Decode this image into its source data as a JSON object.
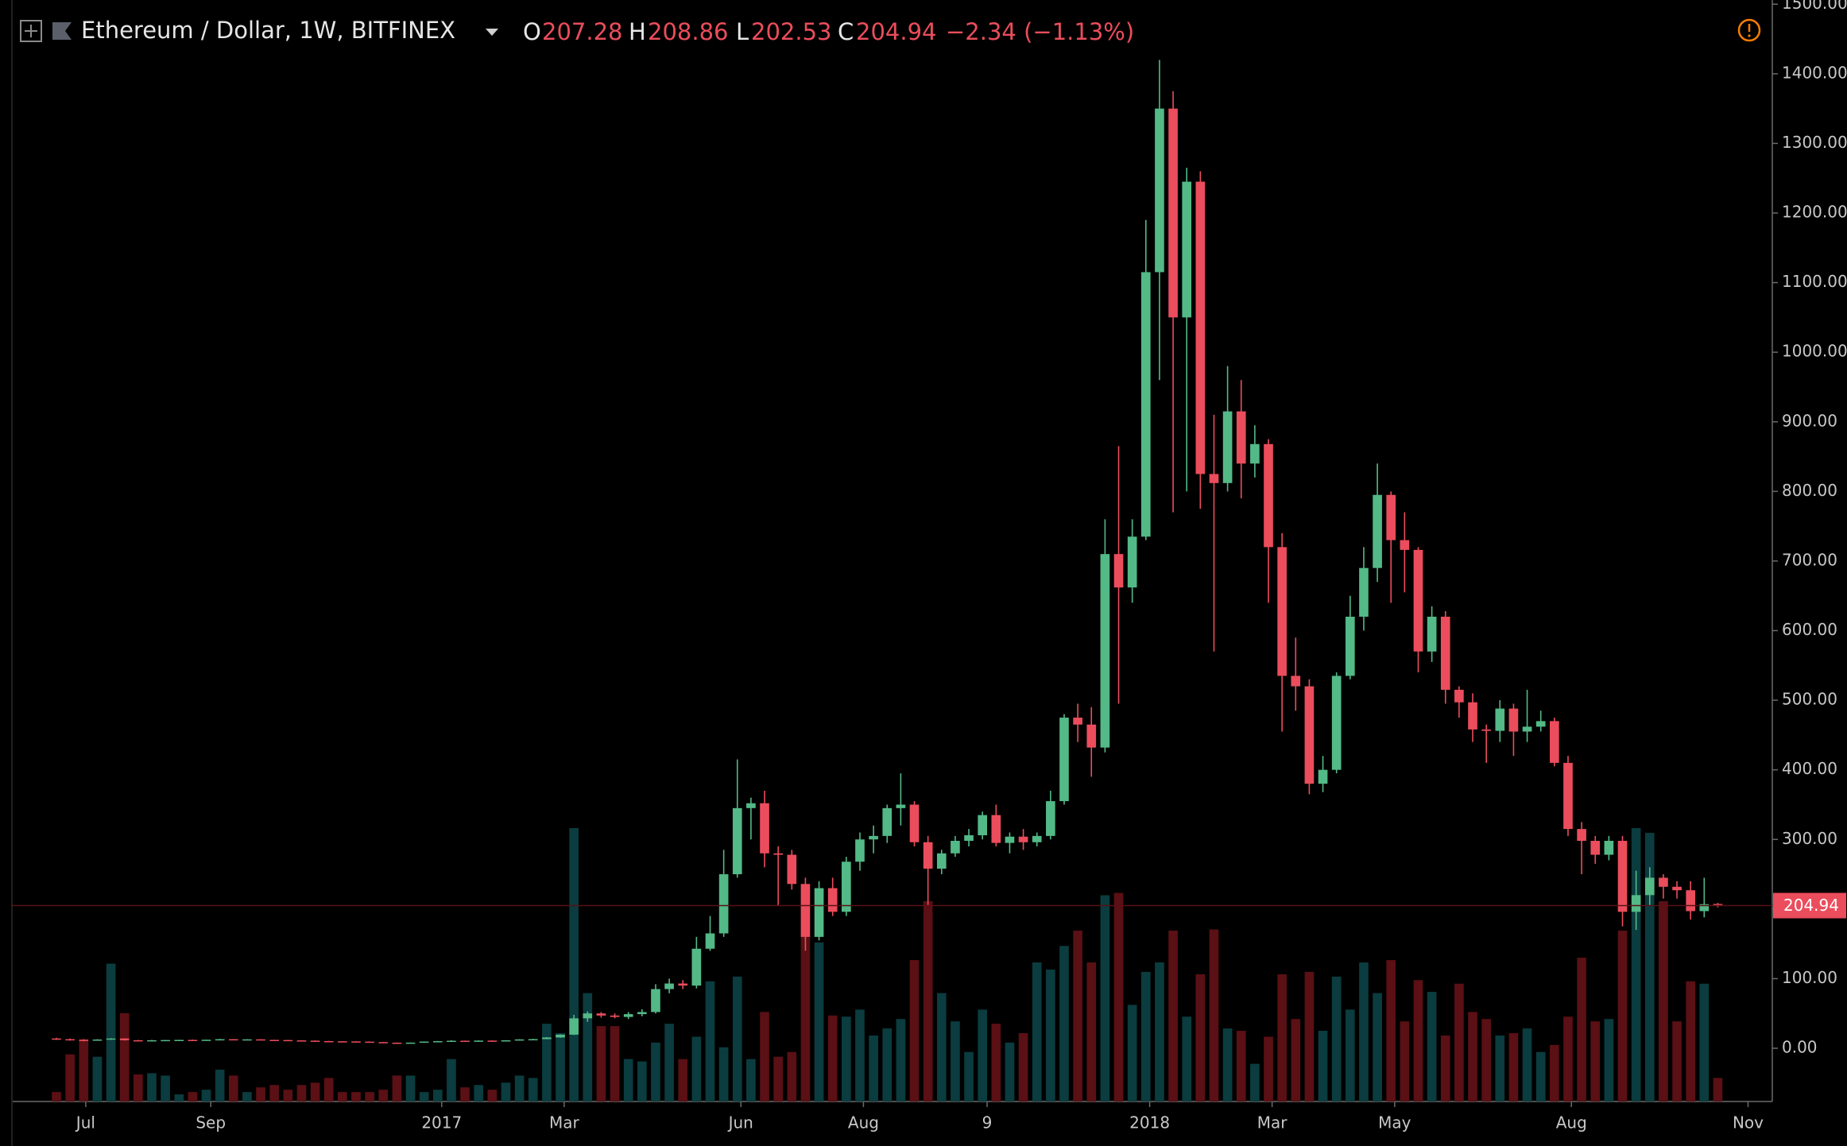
{
  "chart_data": {
    "type": "candlestick",
    "title": "Ethereum / Dollar, 1W, BITFINEX",
    "ohlc_labels": [
      "O",
      "H",
      "L",
      "C"
    ],
    "change": "−2.34 (−1.13%)",
    "open": [
      14,
      13,
      12,
      11,
      12.5,
      14,
      11.5,
      11.2,
      11.5,
      11.8,
      12,
      11.9,
      12.2,
      13,
      12.6,
      12.8,
      12,
      11.8,
      11.3,
      10.9,
      10.3,
      10,
      9.8,
      9.5,
      8.8,
      8,
      7.5,
      8.1,
      9.6,
      10.2,
      10.8,
      10.5,
      11,
      10.8,
      11.4,
      12.7,
      13.1,
      15.5,
      19.5,
      43,
      50,
      47,
      45,
      49,
      52,
      85,
      93,
      90,
      143,
      165,
      250,
      345,
      352,
      280,
      278,
      236,
      160,
      230,
      196,
      268,
      300,
      305,
      345,
      350,
      296,
      258,
      280,
      298,
      306,
      335,
      295,
      304,
      296,
      305,
      355,
      475,
      465,
      432,
      710,
      662,
      735,
      1115,
      1350,
      1050,
      1245,
      825,
      812,
      915,
      840,
      868,
      720,
      535,
      520,
      380,
      400,
      535,
      620,
      690,
      795,
      730,
      716,
      570,
      620,
      515,
      497,
      458,
      456,
      488,
      455,
      462,
      470,
      410,
      315,
      298,
      278,
      298,
      196,
      220,
      245,
      232,
      227,
      197,
      207.28
    ],
    "high": [
      15,
      14,
      13,
      13,
      14.5,
      14.5,
      12,
      12,
      12,
      12.2,
      12.5,
      12.4,
      13.5,
      13.2,
      13,
      13,
      12.2,
      12,
      11.5,
      11.2,
      10.6,
      10.2,
      10,
      9.8,
      9,
      8.3,
      8.3,
      9.8,
      10.5,
      11.5,
      11,
      11.3,
      11.3,
      11.7,
      13,
      13.5,
      16,
      20,
      48,
      53,
      52,
      50,
      52,
      56,
      92,
      100,
      98,
      160,
      190,
      285,
      415,
      360,
      370,
      290,
      285,
      245,
      240,
      245,
      275,
      310,
      320,
      350,
      395,
      355,
      305,
      285,
      305,
      315,
      340,
      350,
      310,
      315,
      310,
      370,
      480,
      495,
      490,
      760,
      865,
      760,
      1190,
      1420,
      1375,
      1265,
      1260,
      910,
      980,
      960,
      895,
      875,
      740,
      590,
      530,
      420,
      540,
      650,
      720,
      840,
      800,
      770,
      720,
      635,
      628,
      520,
      510,
      465,
      500,
      495,
      515,
      485,
      475,
      420,
      325,
      305,
      305,
      305,
      255,
      260,
      250,
      240,
      240,
      245,
      208.86
    ],
    "low": [
      12,
      11,
      10,
      11,
      12,
      11,
      11,
      10.8,
      11,
      11.5,
      11.7,
      11.6,
      12,
      12.3,
      12.2,
      11.8,
      11.5,
      11.2,
      10.6,
      10,
      9.8,
      9.6,
      9.3,
      8.5,
      7.8,
      7.2,
      7.3,
      8,
      9.4,
      10,
      10.3,
      10.4,
      10.6,
      10.7,
      11.3,
      12.4,
      13,
      15,
      19,
      38,
      44,
      43,
      42,
      46,
      50,
      79,
      85,
      86,
      140,
      160,
      245,
      300,
      260,
      205,
      228,
      140,
      155,
      190,
      190,
      255,
      280,
      295,
      320,
      290,
      205,
      250,
      275,
      290,
      300,
      290,
      280,
      285,
      290,
      300,
      350,
      440,
      390,
      425,
      495,
      640,
      730,
      960,
      770,
      800,
      775,
      570,
      800,
      790,
      820,
      640,
      455,
      485,
      365,
      368,
      395,
      530,
      600,
      670,
      640,
      655,
      540,
      555,
      495,
      475,
      440,
      410,
      440,
      420,
      440,
      455,
      405,
      305,
      250,
      265,
      270,
      175,
      170,
      205,
      215,
      215,
      185,
      188,
      202.53
    ],
    "close": [
      13,
      12,
      11,
      12.5,
      14,
      11.5,
      11.2,
      11.5,
      11.8,
      12,
      11.9,
      12.2,
      13,
      12.6,
      12.8,
      12,
      11.8,
      11.3,
      10.9,
      10.3,
      10,
      9.8,
      9.5,
      8.8,
      8,
      7.5,
      8.1,
      9.6,
      10.2,
      10.8,
      10.5,
      11,
      10.8,
      11.4,
      12.7,
      13.1,
      15.5,
      19.5,
      43,
      50,
      47,
      45,
      49,
      52,
      85,
      93,
      90,
      143,
      165,
      250,
      345,
      352,
      280,
      278,
      236,
      160,
      230,
      196,
      268,
      300,
      305,
      345,
      350,
      296,
      258,
      280,
      298,
      306,
      335,
      295,
      304,
      296,
      305,
      355,
      475,
      465,
      432,
      710,
      662,
      735,
      1115,
      1350,
      1050,
      1245,
      825,
      812,
      915,
      840,
      868,
      720,
      535,
      520,
      380,
      400,
      535,
      620,
      690,
      795,
      730,
      716,
      570,
      620,
      515,
      497,
      458,
      456,
      488,
      455,
      462,
      470,
      410,
      315,
      298,
      278,
      298,
      196,
      220,
      245,
      232,
      227,
      197,
      207,
      204.94
    ],
    "volume": [
      8,
      40,
      53,
      38,
      117,
      75,
      23,
      24,
      22,
      6,
      8,
      10,
      27,
      22,
      8,
      12,
      14,
      10,
      14,
      16,
      20,
      8,
      8,
      8,
      10,
      22,
      22,
      8,
      10,
      36,
      12,
      14,
      10,
      16,
      22,
      20,
      66,
      58,
      232,
      92,
      64,
      64,
      36,
      34,
      50,
      66,
      36,
      55,
      102,
      46,
      106,
      36,
      76,
      38,
      42,
      140,
      135,
      73,
      72,
      78,
      56,
      62,
      70,
      120,
      170,
      92,
      68,
      42,
      78,
      66,
      50,
      58,
      118,
      112,
      132,
      145,
      118,
      175,
      177,
      82,
      110,
      118,
      145,
      72,
      108,
      146,
      62,
      60,
      32,
      55,
      108,
      70,
      110,
      60,
      106,
      78,
      118,
      92,
      120,
      68,
      103,
      93,
      56,
      100,
      76,
      70,
      56,
      58,
      62,
      42,
      48,
      72,
      122,
      68,
      70,
      145,
      232,
      228,
      170,
      68,
      102,
      100,
      20
    ],
    "up_color": "#53b987",
    "down_color": "#eb4d5c",
    "volume_up_color": "#0b3c3f",
    "volume_down_color": "#5a1014",
    "ylim": [
      -76.5,
      1506
    ],
    "yticks": [
      {
        "value": 0,
        "label": "0.00"
      },
      {
        "value": 100,
        "label": "100.00"
      },
      {
        "value": 200,
        "label": "200.00"
      },
      {
        "value": 300,
        "label": "300.00"
      },
      {
        "value": 400,
        "label": "400.00"
      },
      {
        "value": 500,
        "label": "500.00"
      },
      {
        "value": 600,
        "label": "600.00"
      },
      {
        "value": 700,
        "label": "700.00"
      },
      {
        "value": 800,
        "label": "800.00"
      },
      {
        "value": 900,
        "label": "900.00"
      },
      {
        "value": 1000,
        "label": "1000.00"
      },
      {
        "value": 1100,
        "label": "1100.00"
      },
      {
        "value": 1200,
        "label": "1200.00"
      },
      {
        "value": 1300,
        "label": "1300.00"
      },
      {
        "value": 1400,
        "label": "1400.00"
      },
      {
        "value": 1500,
        "label": "1500.00"
      }
    ],
    "xlim": [
      -3.27,
      126
    ],
    "xticks": [
      {
        "value": 2.15,
        "label": "Jul"
      },
      {
        "value": 11.33,
        "label": "Sep"
      },
      {
        "value": 28.29,
        "label": "2017"
      },
      {
        "value": 37.28,
        "label": "Mar"
      },
      {
        "value": 50.26,
        "label": "Jun"
      },
      {
        "value": 59.26,
        "label": "Aug"
      },
      {
        "value": 68.34,
        "label": "9"
      },
      {
        "value": 80.28,
        "label": "2018"
      },
      {
        "value": 89.27,
        "label": "Mar"
      },
      {
        "value": 98.27,
        "label": "May"
      },
      {
        "value": 111.25,
        "label": "Aug"
      },
      {
        "value": 124.22,
        "label": "Nov"
      }
    ],
    "grid": false
  }
}
